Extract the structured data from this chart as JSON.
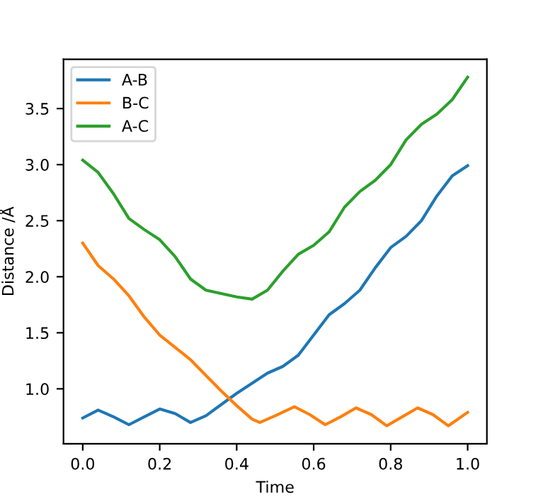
{
  "chart_data": {
    "type": "line",
    "xlabel": "Time",
    "ylabel": "Distance /Å",
    "xlim": [
      -0.05,
      1.05
    ],
    "xticks": [
      {
        "value": 0,
        "label": "0.0"
      },
      0.2,
      0.4,
      0.6,
      0.8,
      {
        "value": 1,
        "label": "1.0"
      }
    ],
    "ylim": [
      0.51,
      3.94
    ],
    "yticks": [
      {
        "value": 1,
        "label": "1.0"
      },
      1.5,
      {
        "value": 2,
        "label": "2.0"
      },
      2.5,
      {
        "value": 3,
        "label": "3.0"
      },
      3.5
    ],
    "grid": false,
    "legend": "top left",
    "series": [
      {
        "name": "A-B",
        "color": "#1f77b4",
        "x": [
          0,
          0.04,
          0.08,
          0.12,
          0.16,
          0.2,
          0.24,
          0.28,
          0.32,
          0.36,
          0.4,
          0.44,
          0.48,
          0.52,
          0.56,
          0.6,
          0.64,
          0.68,
          0.72,
          0.76,
          0.8,
          0.84,
          0.88,
          0.92,
          0.96,
          1.0
        ],
        "values": [
          0.74,
          0.81,
          0.75,
          0.68,
          0.75,
          0.82,
          0.78,
          0.7,
          0.76,
          0.86,
          0.96,
          1.05,
          1.14,
          1.2,
          1.3,
          1.48,
          1.66,
          1.76,
          1.88,
          2.08,
          2.26,
          2.36,
          2.5,
          2.72,
          2.9,
          2.99
        ]
      },
      {
        "name": "B-C",
        "color": "#ff7f0e",
        "x": [
          0,
          0.04,
          0.08,
          0.12,
          0.16,
          0.2,
          0.24,
          0.28,
          0.32,
          0.36,
          0.4,
          0.44,
          0.46,
          0.5,
          0.55,
          0.59,
          0.63,
          0.67,
          0.71,
          0.75,
          0.79,
          0.83,
          0.87,
          0.91,
          0.95,
          1.0
        ],
        "values": [
          2.3,
          2.1,
          1.98,
          1.83,
          1.64,
          1.48,
          1.37,
          1.26,
          1.12,
          0.98,
          0.85,
          0.73,
          0.7,
          0.76,
          0.84,
          0.77,
          0.68,
          0.75,
          0.83,
          0.77,
          0.67,
          0.75,
          0.83,
          0.77,
          0.67,
          0.79
        ]
      },
      {
        "name": "A-C",
        "color": "#2ca02c",
        "x": [
          0,
          0.04,
          0.08,
          0.12,
          0.16,
          0.2,
          0.24,
          0.28,
          0.32,
          0.36,
          0.4,
          0.44,
          0.48,
          0.52,
          0.56,
          0.6,
          0.64,
          0.68,
          0.72,
          0.76,
          0.8,
          0.84,
          0.88,
          0.92,
          0.96,
          1.0
        ],
        "values": [
          3.04,
          2.93,
          2.74,
          2.52,
          2.42,
          2.33,
          2.18,
          1.98,
          1.88,
          1.85,
          1.82,
          1.8,
          1.88,
          2.05,
          2.2,
          2.28,
          2.4,
          2.62,
          2.76,
          2.86,
          3.0,
          3.22,
          3.36,
          3.45,
          3.58,
          3.78
        ]
      }
    ]
  }
}
